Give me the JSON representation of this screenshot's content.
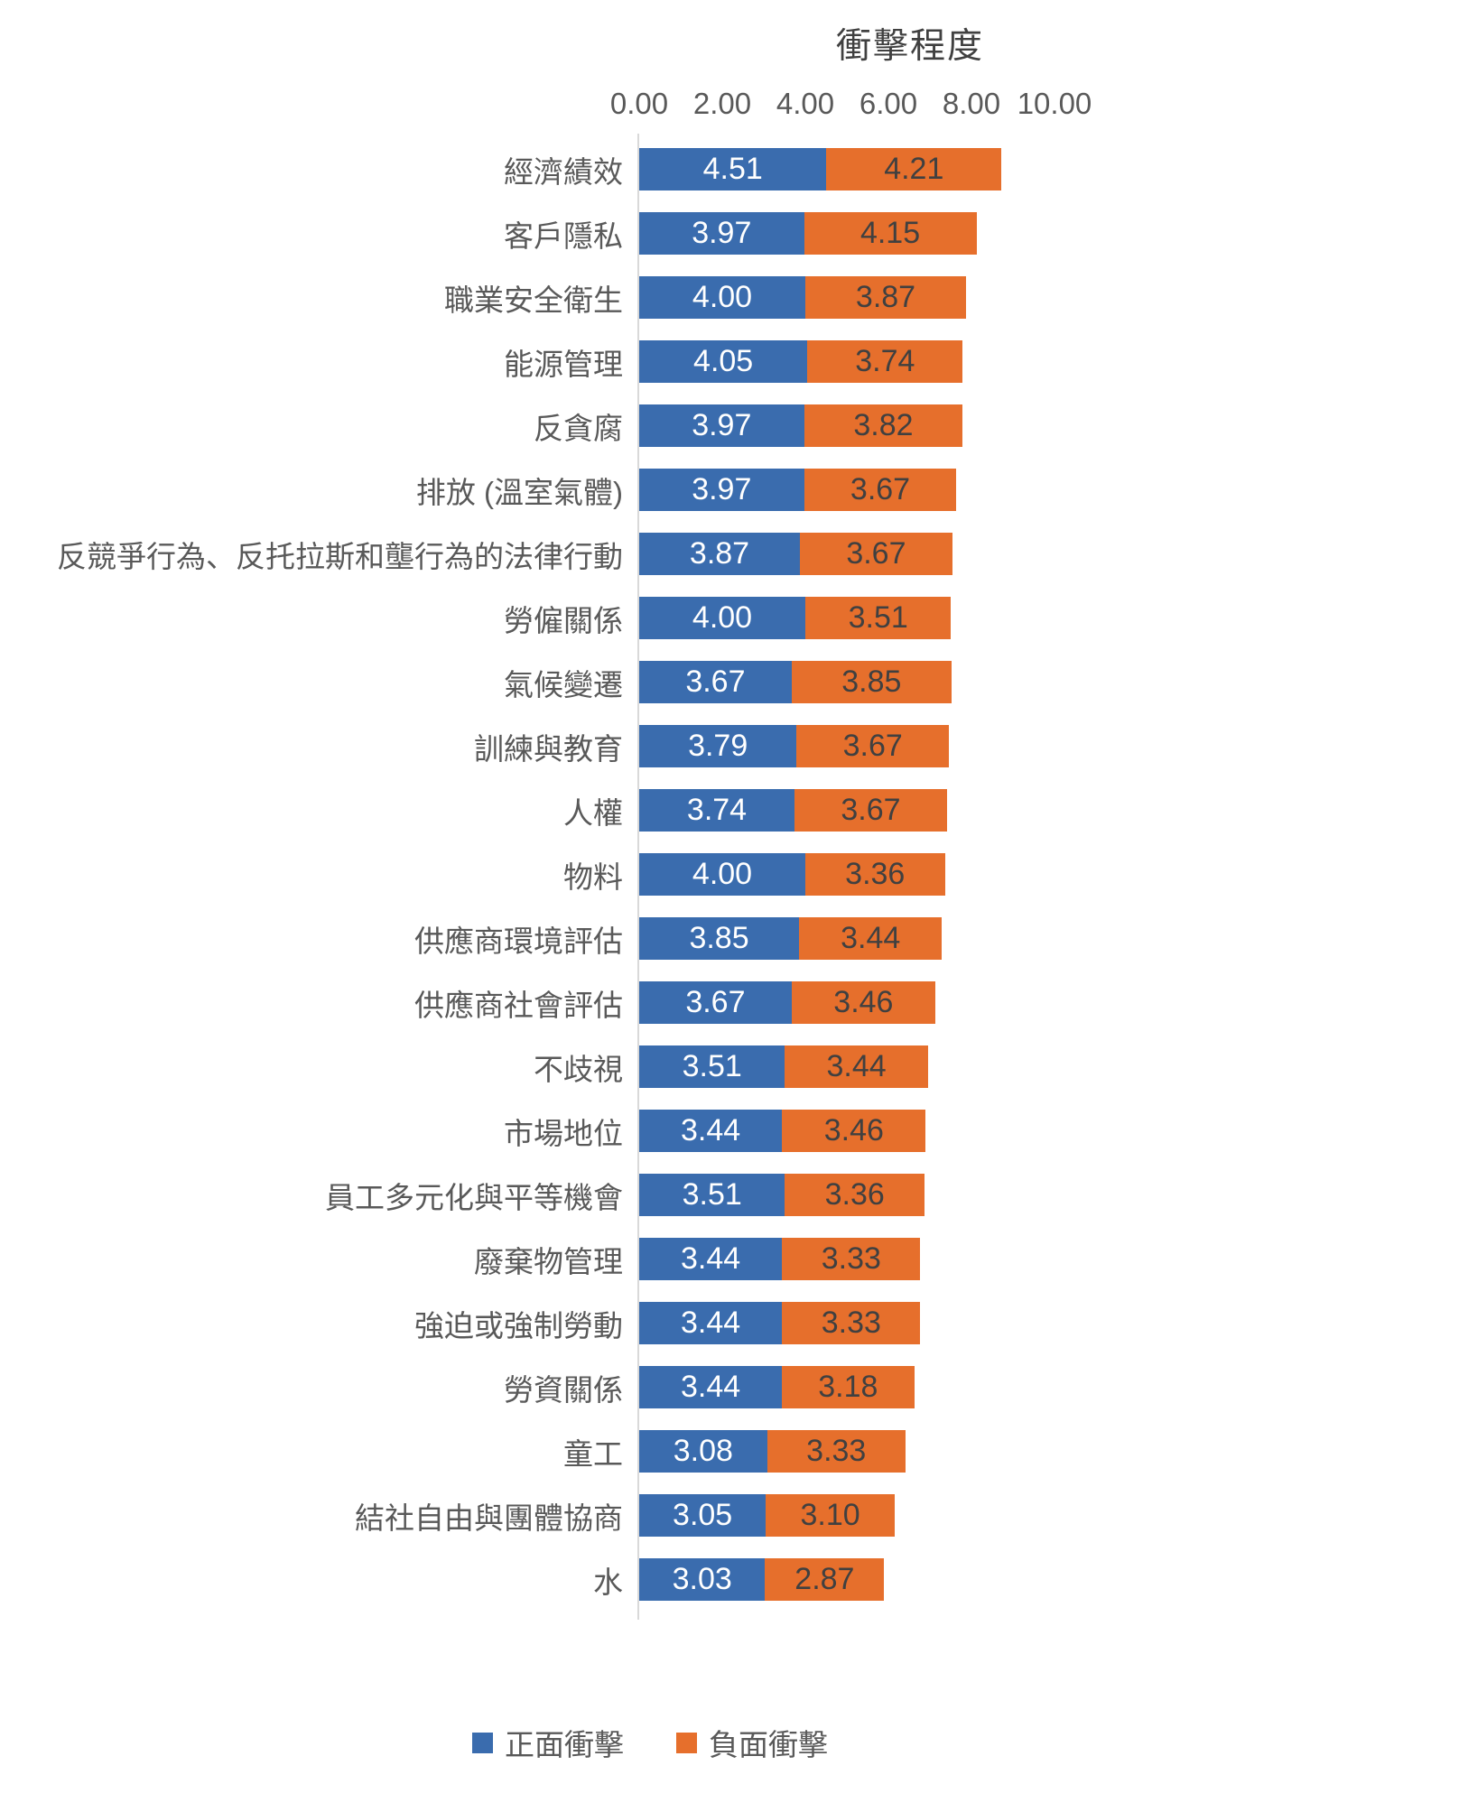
{
  "chart_data": {
    "type": "bar",
    "orientation": "horizontal",
    "stacked": true,
    "title": "衝擊程度",
    "xlabel": "",
    "ylabel": "",
    "xlim": [
      0,
      10
    ],
    "x_ticks": [
      "0.00",
      "2.00",
      "4.00",
      "6.00",
      "8.00",
      "10.00"
    ],
    "grid": false,
    "legend_position": "bottom",
    "categories": [
      "經濟績效",
      "客戶隱私",
      "職業安全衛生",
      "能源管理",
      "反貪腐",
      "排放 (溫室氣體)",
      "反競爭行為、反托拉斯和壟行為的法律行動",
      "勞僱關係",
      "氣候變遷",
      "訓練與教育",
      "人權",
      "物料",
      "供應商環境評估",
      "供應商社會評估",
      "不歧視",
      "市場地位",
      "員工多元化與平等機會",
      "廢棄物管理",
      "強迫或強制勞動",
      "勞資關係",
      "童工",
      "結社自由與團體協商",
      "水"
    ],
    "series": [
      {
        "name": "正面衝擊",
        "color": "#3A6CAE",
        "values": [
          4.51,
          3.97,
          4.0,
          4.05,
          3.97,
          3.97,
          3.87,
          4.0,
          3.67,
          3.79,
          3.74,
          4.0,
          3.85,
          3.67,
          3.51,
          3.44,
          3.51,
          3.44,
          3.44,
          3.44,
          3.08,
          3.05,
          3.03
        ]
      },
      {
        "name": "負面衝擊",
        "color": "#E66F2C",
        "values": [
          4.21,
          4.15,
          3.87,
          3.74,
          3.82,
          3.67,
          3.67,
          3.51,
          3.85,
          3.67,
          3.67,
          3.36,
          3.44,
          3.46,
          3.44,
          3.46,
          3.36,
          3.33,
          3.33,
          3.18,
          3.33,
          3.1,
          2.87
        ]
      }
    ],
    "colors": {
      "title_text": "#404040",
      "axis_text": "#595959",
      "axis_line": "#D9D9D9",
      "value_label_on_positive": "#FFFFFF",
      "value_label_on_negative": "#404040"
    }
  }
}
